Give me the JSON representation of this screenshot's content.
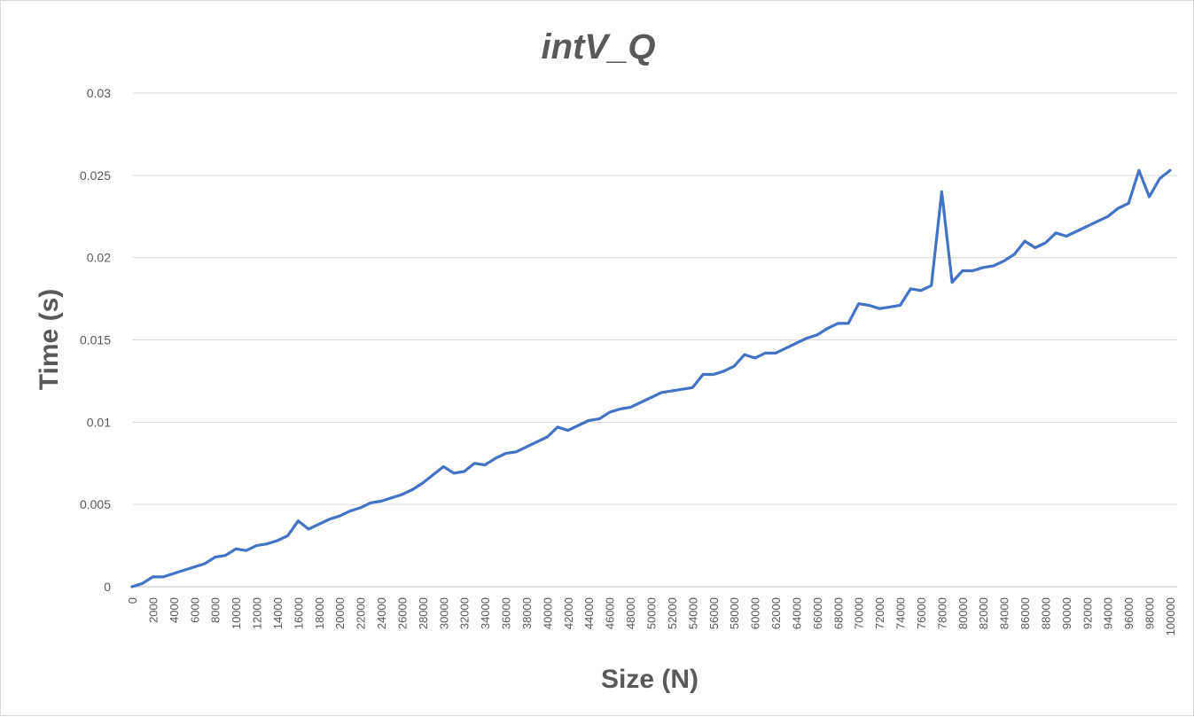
{
  "chart_data": {
    "type": "line",
    "title": "intV_Q",
    "xlabel": "Size (N)",
    "ylabel": "Time (s)",
    "ylim": [
      0,
      0.03
    ],
    "yticks": [
      "0",
      "0.005",
      "0.01",
      "0.015",
      "0.02",
      "0.025",
      "0.03"
    ],
    "xticks": [
      "0",
      "2000",
      "4000",
      "6000",
      "8000",
      "10000",
      "12000",
      "14000",
      "16000",
      "18000",
      "20000",
      "22000",
      "24000",
      "26000",
      "28000",
      "30000",
      "32000",
      "34000",
      "36000",
      "38000",
      "40000",
      "42000",
      "44000",
      "46000",
      "48000",
      "50000",
      "52000",
      "54000",
      "56000",
      "58000",
      "60000",
      "62000",
      "64000",
      "66000",
      "68000",
      "70000",
      "72000",
      "74000",
      "76000",
      "78000",
      "80000",
      "82000",
      "84000",
      "86000",
      "88000",
      "90000",
      "92000",
      "94000",
      "96000",
      "98000",
      "100000"
    ],
    "grid": true,
    "legend": "none",
    "color": "#4472c4",
    "x": [
      0,
      1000,
      2000,
      3000,
      4000,
      5000,
      6000,
      7000,
      8000,
      9000,
      10000,
      11000,
      12000,
      13000,
      14000,
      15000,
      16000,
      17000,
      18000,
      19000,
      20000,
      21000,
      22000,
      23000,
      24000,
      25000,
      26000,
      27000,
      28000,
      29000,
      30000,
      31000,
      32000,
      33000,
      34000,
      35000,
      36000,
      37000,
      38000,
      39000,
      40000,
      41000,
      42000,
      43000,
      44000,
      45000,
      46000,
      47000,
      48000,
      49000,
      50000,
      51000,
      52000,
      53000,
      54000,
      55000,
      56000,
      57000,
      58000,
      59000,
      60000,
      61000,
      62000,
      63000,
      64000,
      65000,
      66000,
      67000,
      68000,
      69000,
      70000,
      71000,
      72000,
      73000,
      74000,
      75000,
      76000,
      77000,
      78000,
      79000,
      80000,
      81000,
      82000,
      83000,
      84000,
      85000,
      86000,
      87000,
      88000,
      89000,
      90000,
      91000,
      92000,
      93000,
      94000,
      95000,
      96000,
      97000,
      98000,
      99000,
      100000
    ],
    "y": [
      0,
      0.0002,
      0.0006,
      0.0006,
      0.0008,
      0.001,
      0.0012,
      0.0014,
      0.0018,
      0.0019,
      0.0023,
      0.0022,
      0.0025,
      0.0026,
      0.0028,
      0.0031,
      0.004,
      0.0035,
      0.0038,
      0.0041,
      0.0043,
      0.0046,
      0.0048,
      0.0051,
      0.0052,
      0.0054,
      0.0056,
      0.0059,
      0.0063,
      0.0068,
      0.0073,
      0.0069,
      0.007,
      0.0075,
      0.0074,
      0.0078,
      0.0081,
      0.0082,
      0.0085,
      0.0088,
      0.0091,
      0.0097,
      0.0095,
      0.0098,
      0.0101,
      0.0102,
      0.0106,
      0.0108,
      0.0109,
      0.0112,
      0.0115,
      0.0118,
      0.0119,
      0.012,
      0.0121,
      0.0129,
      0.0129,
      0.0131,
      0.0134,
      0.0141,
      0.0139,
      0.0142,
      0.0142,
      0.0145,
      0.0148,
      0.0151,
      0.0153,
      0.0157,
      0.016,
      0.016,
      0.0172,
      0.0171,
      0.0169,
      0.017,
      0.0171,
      0.0181,
      0.018,
      0.0183,
      0.024,
      0.0185,
      0.0192,
      0.0192,
      0.0194,
      0.0195,
      0.0198,
      0.0202,
      0.021,
      0.0206,
      0.0209,
      0.0215,
      0.0213,
      0.0216,
      0.0219,
      0.0222,
      0.0225,
      0.023,
      0.0233,
      0.0253,
      0.0237,
      0.0248,
      0.0253
    ]
  }
}
